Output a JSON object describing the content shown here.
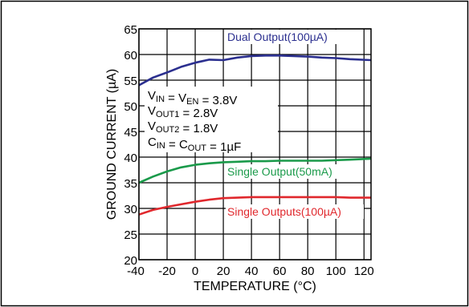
{
  "chart_data": {
    "type": "line",
    "xlabel": "TEMPERATURE (°C)",
    "ylabel": "GROUND CURRENT (µA)",
    "xlim": [
      -40,
      125
    ],
    "ylim": [
      20,
      65
    ],
    "x_ticks": [
      -40,
      -20,
      0,
      20,
      40,
      60,
      80,
      100,
      120
    ],
    "y_ticks": [
      20,
      25,
      30,
      35,
      40,
      45,
      50,
      55,
      60,
      65
    ],
    "x_tick_labels": [
      "-40",
      "-20",
      "0",
      "20",
      "40",
      "60",
      "80",
      "100",
      "120"
    ],
    "y_tick_labels": [
      "20",
      "25",
      "30",
      "35",
      "40",
      "45",
      "50",
      "55",
      "60",
      "65"
    ],
    "grid": true,
    "series": [
      {
        "name": "Dual Output(100µA)",
        "color": "#2b2f8f",
        "x": [
          -40,
          -30,
          -20,
          -10,
          0,
          10,
          20,
          30,
          40,
          50,
          60,
          70,
          80,
          90,
          100,
          110,
          125
        ],
        "y": [
          54.0,
          55.5,
          56.5,
          57.6,
          58.4,
          59.0,
          58.9,
          59.4,
          59.7,
          59.8,
          59.8,
          59.7,
          59.6,
          59.4,
          59.3,
          59.1,
          58.9
        ]
      },
      {
        "name": "Single Output(50mA)",
        "color": "#1a9a4a",
        "x": [
          -40,
          -30,
          -20,
          -10,
          0,
          10,
          20,
          30,
          40,
          50,
          60,
          70,
          80,
          90,
          100,
          110,
          125
        ],
        "y": [
          35.0,
          36.2,
          37.2,
          38.0,
          38.5,
          38.8,
          39.0,
          39.1,
          39.2,
          39.2,
          39.3,
          39.3,
          39.3,
          39.3,
          39.4,
          39.5,
          39.7
        ]
      },
      {
        "name": "Single Outputs(100µA)",
        "color": "#e0282d",
        "x": [
          -40,
          -30,
          -20,
          -10,
          0,
          10,
          20,
          30,
          40,
          50,
          60,
          70,
          80,
          90,
          100,
          110,
          125
        ],
        "y": [
          28.8,
          29.7,
          30.3,
          30.8,
          31.3,
          31.7,
          32.0,
          32.1,
          32.2,
          32.2,
          32.2,
          32.2,
          32.2,
          32.2,
          32.2,
          32.1,
          32.1
        ]
      }
    ],
    "conditions": [
      {
        "main": "V",
        "sub": "IN",
        "mid": " = V",
        "sub2": "EN",
        "tail": " = 3.8V"
      },
      {
        "main": "V",
        "sub": "OUT1",
        "tail": " = 2.8V"
      },
      {
        "main": "V",
        "sub": "OUT2",
        "tail": " = 1.8V"
      },
      {
        "main": "C",
        "sub": "IN",
        "mid": " = C",
        "sub2": "OUT",
        "tail": " = 1µF"
      }
    ]
  }
}
